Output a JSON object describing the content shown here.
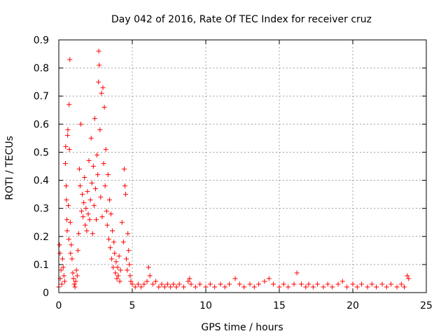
{
  "chart_data": {
    "type": "scatter",
    "title": "Day 042 of 2016, Rate Of TEC Index for receiver cruz",
    "xlabel": "GPS time / hours",
    "ylabel": "ROTI / TECUs",
    "xlim": [
      0,
      25
    ],
    "ylim": [
      0,
      0.9
    ],
    "xticks": [
      0,
      5,
      10,
      15,
      20,
      25
    ],
    "xtick_labels": [
      "0",
      "5",
      "10",
      "15",
      "20",
      "25"
    ],
    "yticks": [
      0,
      0.1,
      0.2,
      0.3,
      0.4,
      0.5,
      0.6,
      0.7,
      0.8,
      0.9
    ],
    "ytick_labels": [
      "0",
      "0.1",
      "0.2",
      "0.3",
      "0.4",
      "0.5",
      "0.6",
      "0.7",
      "0.8",
      "0.9"
    ],
    "grid": true,
    "marker": "+",
    "color": "#ff0000",
    "series": [
      {
        "name": "ROTI",
        "points": [
          [
            0.0,
            0.02
          ],
          [
            0.05,
            0.17
          ],
          [
            0.08,
            0.14
          ],
          [
            0.1,
            0.05
          ],
          [
            0.15,
            0.08
          ],
          [
            0.2,
            0.03
          ],
          [
            0.25,
            0.12
          ],
          [
            0.3,
            0.09
          ],
          [
            0.35,
            0.06
          ],
          [
            0.4,
            0.04
          ],
          [
            0.45,
            0.46
          ],
          [
            0.47,
            0.52
          ],
          [
            0.5,
            0.38
          ],
          [
            0.52,
            0.33
          ],
          [
            0.55,
            0.26
          ],
          [
            0.57,
            0.22
          ],
          [
            0.6,
            0.56
          ],
          [
            0.62,
            0.58
          ],
          [
            0.65,
            0.31
          ],
          [
            0.68,
            0.19
          ],
          [
            0.7,
            0.67
          ],
          [
            0.72,
            0.51
          ],
          [
            0.75,
            0.83
          ],
          [
            0.78,
            0.25
          ],
          [
            0.8,
            0.14
          ],
          [
            0.85,
            0.17
          ],
          [
            0.9,
            0.12
          ],
          [
            0.95,
            0.07
          ],
          [
            1.0,
            0.05
          ],
          [
            1.05,
            0.03
          ],
          [
            1.1,
            0.02
          ],
          [
            1.15,
            0.04
          ],
          [
            1.2,
            0.08
          ],
          [
            1.25,
            0.06
          ],
          [
            1.3,
            0.15
          ],
          [
            1.35,
            0.21
          ],
          [
            1.4,
            0.44
          ],
          [
            1.45,
            0.38
          ],
          [
            1.5,
            0.6
          ],
          [
            1.55,
            0.29
          ],
          [
            1.6,
            0.35
          ],
          [
            1.65,
            0.27
          ],
          [
            1.7,
            0.32
          ],
          [
            1.75,
            0.41
          ],
          [
            1.8,
            0.24
          ],
          [
            1.85,
            0.3
          ],
          [
            1.9,
            0.22
          ],
          [
            1.95,
            0.36
          ],
          [
            2.0,
            0.28
          ],
          [
            2.05,
            0.47
          ],
          [
            2.1,
            0.26
          ],
          [
            2.15,
            0.33
          ],
          [
            2.2,
            0.55
          ],
          [
            2.25,
            0.39
          ],
          [
            2.3,
            0.21
          ],
          [
            2.35,
            0.45
          ],
          [
            2.4,
            0.31
          ],
          [
            2.45,
            0.62
          ],
          [
            2.5,
            0.37
          ],
          [
            2.55,
            0.26
          ],
          [
            2.6,
            0.49
          ],
          [
            2.65,
            0.42
          ],
          [
            2.7,
            0.75
          ],
          [
            2.72,
            0.86
          ],
          [
            2.75,
            0.81
          ],
          [
            2.8,
            0.58
          ],
          [
            2.85,
            0.34
          ],
          [
            2.9,
            0.71
          ],
          [
            2.95,
            0.27
          ],
          [
            3.0,
            0.73
          ],
          [
            3.05,
            0.46
          ],
          [
            3.1,
            0.66
          ],
          [
            3.15,
            0.38
          ],
          [
            3.2,
            0.51
          ],
          [
            3.25,
            0.29
          ],
          [
            3.3,
            0.24
          ],
          [
            3.35,
            0.42
          ],
          [
            3.4,
            0.19
          ],
          [
            3.45,
            0.33
          ],
          [
            3.5,
            0.16
          ],
          [
            3.55,
            0.28
          ],
          [
            3.6,
            0.12
          ],
          [
            3.65,
            0.22
          ],
          [
            3.7,
            0.09
          ],
          [
            3.75,
            0.18
          ],
          [
            3.8,
            0.14
          ],
          [
            3.85,
            0.07
          ],
          [
            3.9,
            0.11
          ],
          [
            3.95,
            0.05
          ],
          [
            4.0,
            0.09
          ],
          [
            4.05,
            0.06
          ],
          [
            4.1,
            0.13
          ],
          [
            4.15,
            0.04
          ],
          [
            4.2,
            0.08
          ],
          [
            4.3,
            0.25
          ],
          [
            4.4,
            0.18
          ],
          [
            4.45,
            0.44
          ],
          [
            4.5,
            0.38
          ],
          [
            4.55,
            0.35
          ],
          [
            4.6,
            0.12
          ],
          [
            4.65,
            0.08
          ],
          [
            4.7,
            0.21
          ],
          [
            4.75,
            0.15
          ],
          [
            4.8,
            0.1
          ],
          [
            4.85,
            0.06
          ],
          [
            4.9,
            0.04
          ],
          [
            5.0,
            0.03
          ],
          [
            5.2,
            0.02
          ],
          [
            5.4,
            0.03
          ],
          [
            5.6,
            0.02
          ],
          [
            5.8,
            0.03
          ],
          [
            6.0,
            0.04
          ],
          [
            6.1,
            0.09
          ],
          [
            6.2,
            0.06
          ],
          [
            6.4,
            0.03
          ],
          [
            6.6,
            0.04
          ],
          [
            6.8,
            0.02
          ],
          [
            7.0,
            0.03
          ],
          [
            7.2,
            0.02
          ],
          [
            7.4,
            0.03
          ],
          [
            7.6,
            0.02
          ],
          [
            7.8,
            0.03
          ],
          [
            8.0,
            0.02
          ],
          [
            8.2,
            0.03
          ],
          [
            8.5,
            0.02
          ],
          [
            8.8,
            0.04
          ],
          [
            8.9,
            0.05
          ],
          [
            9.0,
            0.03
          ],
          [
            9.3,
            0.02
          ],
          [
            9.6,
            0.03
          ],
          [
            10.0,
            0.02
          ],
          [
            10.3,
            0.03
          ],
          [
            10.6,
            0.02
          ],
          [
            11.0,
            0.03
          ],
          [
            11.3,
            0.02
          ],
          [
            11.6,
            0.03
          ],
          [
            12.0,
            0.05
          ],
          [
            12.3,
            0.03
          ],
          [
            12.6,
            0.02
          ],
          [
            13.0,
            0.03
          ],
          [
            13.3,
            0.02
          ],
          [
            13.6,
            0.03
          ],
          [
            14.0,
            0.04
          ],
          [
            14.3,
            0.05
          ],
          [
            14.6,
            0.03
          ],
          [
            15.0,
            0.02
          ],
          [
            15.3,
            0.03
          ],
          [
            15.6,
            0.02
          ],
          [
            16.0,
            0.03
          ],
          [
            16.2,
            0.07
          ],
          [
            16.5,
            0.03
          ],
          [
            16.8,
            0.02
          ],
          [
            17.0,
            0.03
          ],
          [
            17.3,
            0.02
          ],
          [
            17.6,
            0.03
          ],
          [
            18.0,
            0.02
          ],
          [
            18.3,
            0.03
          ],
          [
            18.6,
            0.02
          ],
          [
            19.0,
            0.03
          ],
          [
            19.3,
            0.04
          ],
          [
            19.6,
            0.02
          ],
          [
            20.0,
            0.03
          ],
          [
            20.3,
            0.02
          ],
          [
            20.6,
            0.03
          ],
          [
            21.0,
            0.02
          ],
          [
            21.3,
            0.03
          ],
          [
            21.6,
            0.02
          ],
          [
            22.0,
            0.03
          ],
          [
            22.3,
            0.02
          ],
          [
            22.6,
            0.03
          ],
          [
            23.0,
            0.02
          ],
          [
            23.3,
            0.03
          ],
          [
            23.5,
            0.02
          ],
          [
            23.7,
            0.06
          ],
          [
            23.8,
            0.05
          ]
        ]
      }
    ]
  }
}
